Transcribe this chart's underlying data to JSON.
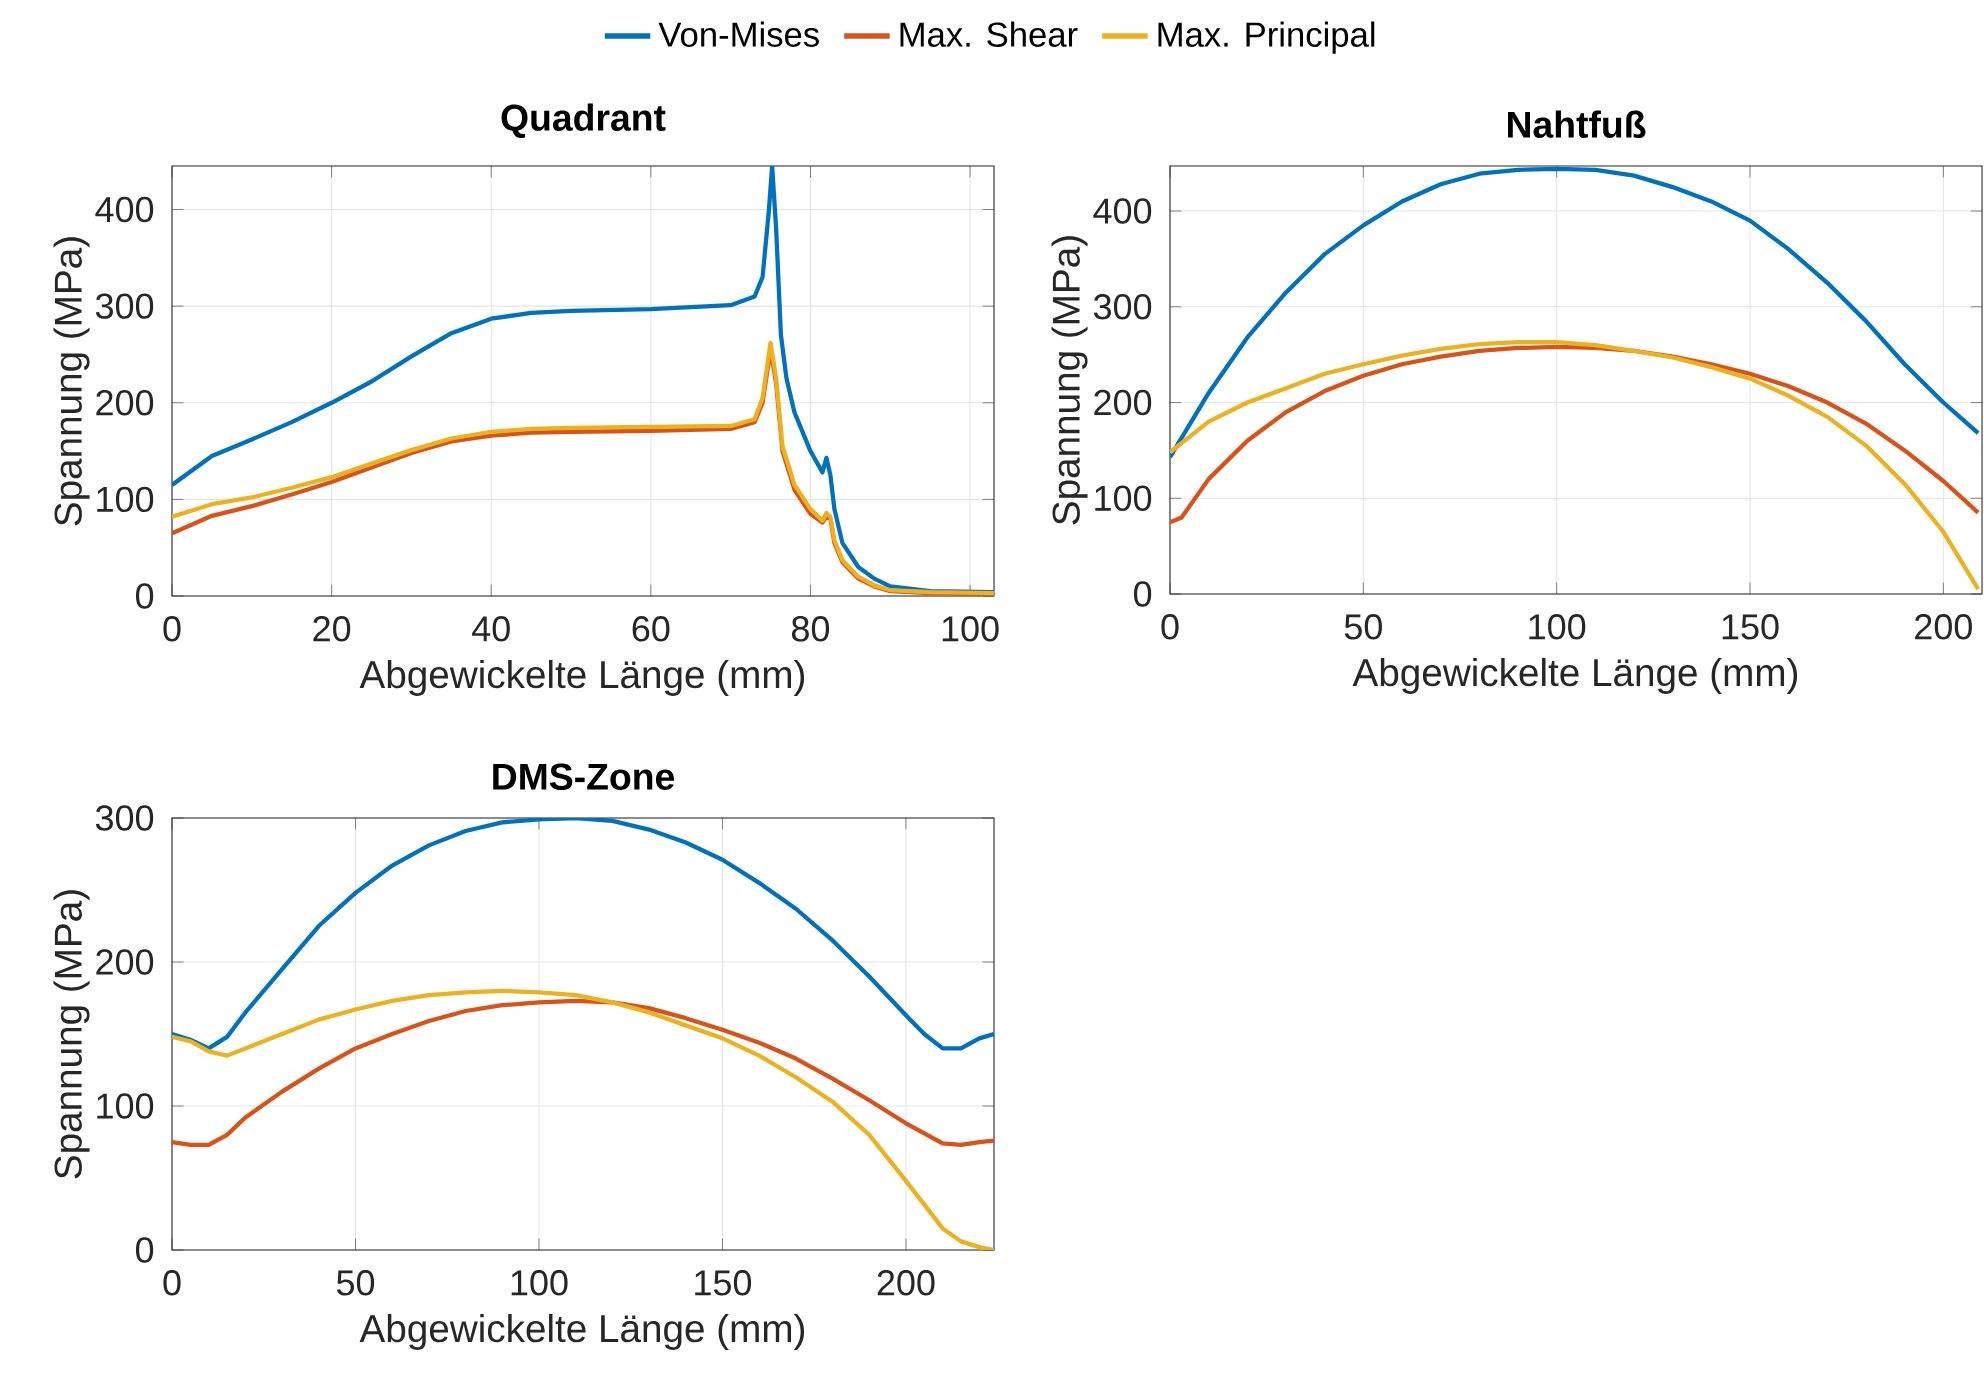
{
  "chart_data": [
    {
      "type": "line",
      "title": "Quadrant",
      "xlabel": "Abgewickelte Länge (mm)",
      "ylabel": "Spannung (MPa)",
      "xlim": [
        0,
        103
      ],
      "ylim": [
        0,
        445
      ],
      "xticks": [
        0,
        20,
        40,
        60,
        80,
        100
      ],
      "yticks": [
        0,
        100,
        200,
        300,
        400
      ],
      "grid": true,
      "legend": "top",
      "line_style": "solid",
      "series": [
        {
          "name": "Von-Mises",
          "color": "#0072bd",
          "x": [
            0,
            5,
            10,
            15,
            20,
            25,
            30,
            35,
            40,
            45,
            50,
            60,
            70,
            73,
            74,
            74.8,
            75.2,
            75.7,
            76.3,
            77,
            78,
            80,
            81.5,
            82,
            82.5,
            83,
            84,
            86,
            88,
            90,
            95,
            103
          ],
          "values": [
            115,
            145,
            162,
            180,
            200,
            222,
            248,
            272,
            287,
            293,
            295,
            297,
            301,
            310,
            330,
            400,
            445,
            380,
            270,
            225,
            190,
            150,
            128,
            143,
            125,
            90,
            55,
            30,
            18,
            10,
            5,
            4
          ]
        },
        {
          "name": "Max. Shear",
          "color": "#d95319",
          "x": [
            0,
            5,
            10,
            15,
            20,
            25,
            30,
            35,
            40,
            45,
            50,
            60,
            70,
            73,
            74,
            75,
            75.7,
            76.5,
            78,
            80,
            81.5,
            82,
            82.5,
            83,
            84,
            86,
            88,
            90,
            95,
            103
          ],
          "values": [
            65,
            83,
            93,
            105,
            118,
            133,
            148,
            160,
            166,
            169,
            170,
            171,
            173,
            180,
            200,
            255,
            220,
            150,
            110,
            85,
            76,
            82,
            80,
            55,
            35,
            18,
            10,
            5,
            3,
            2
          ]
        },
        {
          "name": "Max. Principal",
          "color": "#edb120",
          "x": [
            0,
            5,
            10,
            15,
            20,
            25,
            30,
            35,
            40,
            45,
            50,
            60,
            70,
            73,
            74,
            75,
            75.7,
            76.5,
            78,
            80,
            81.5,
            82,
            82.5,
            83,
            84,
            86,
            88,
            90,
            95,
            103
          ],
          "values": [
            82,
            95,
            102,
            112,
            123,
            137,
            151,
            163,
            170,
            173,
            174,
            175,
            176,
            183,
            205,
            262,
            225,
            155,
            115,
            90,
            78,
            86,
            82,
            58,
            37,
            20,
            11,
            6,
            4,
            3
          ]
        }
      ]
    },
    {
      "type": "line",
      "title": "Nahtfuß",
      "xlabel": "Abgewickelte Länge (mm)",
      "ylabel": "Spannung (MPa)",
      "xlim": [
        0,
        210
      ],
      "ylim": [
        0,
        447
      ],
      "xticks": [
        0,
        50,
        100,
        150,
        200
      ],
      "yticks": [
        0,
        100,
        200,
        300,
        400
      ],
      "grid": true,
      "line_style": "solid",
      "series": [
        {
          "color": "#0072bd",
          "x": [
            0,
            10,
            20,
            30,
            40,
            50,
            60,
            70,
            80,
            90,
            100,
            110,
            120,
            130,
            140,
            150,
            160,
            170,
            180,
            190,
            200,
            209
          ],
          "values": [
            143,
            210,
            268,
            315,
            355,
            385,
            410,
            428,
            439,
            443,
            444,
            443,
            437,
            425,
            410,
            390,
            360,
            325,
            285,
            240,
            200,
            168
          ]
        },
        {
          "color": "#d95319",
          "x": [
            0,
            3,
            10,
            20,
            30,
            40,
            50,
            60,
            70,
            80,
            90,
            100,
            110,
            120,
            130,
            140,
            150,
            160,
            170,
            180,
            190,
            200,
            209
          ],
          "values": [
            75,
            80,
            120,
            160,
            190,
            212,
            228,
            240,
            248,
            254,
            257,
            258,
            257,
            254,
            248,
            240,
            230,
            217,
            200,
            178,
            150,
            118,
            85
          ]
        },
        {
          "color": "#edb120",
          "x": [
            0,
            10,
            20,
            30,
            40,
            50,
            60,
            70,
            80,
            90,
            100,
            110,
            120,
            130,
            140,
            150,
            160,
            170,
            180,
            190,
            200,
            209
          ],
          "values": [
            148,
            180,
            200,
            215,
            230,
            240,
            249,
            256,
            261,
            263,
            263,
            260,
            254,
            247,
            237,
            225,
            207,
            185,
            155,
            115,
            65,
            5
          ]
        }
      ]
    },
    {
      "type": "line",
      "title": "DMS-Zone",
      "xlabel": "Abgewickelte Länge (mm)",
      "ylabel": "Spannung (MPa)",
      "xlim": [
        0,
        224
      ],
      "ylim": [
        0,
        300
      ],
      "xticks": [
        0,
        50,
        100,
        150,
        200
      ],
      "yticks": [
        0,
        100,
        200,
        300
      ],
      "grid": true,
      "line_style": "solid",
      "series": [
        {
          "color": "#0072bd",
          "x": [
            0,
            5,
            10,
            15,
            20,
            30,
            40,
            50,
            60,
            70,
            80,
            90,
            100,
            110,
            120,
            130,
            140,
            150,
            160,
            170,
            180,
            190,
            200,
            205,
            210,
            215,
            220,
            224
          ],
          "values": [
            150,
            146,
            140,
            148,
            165,
            195,
            225,
            248,
            267,
            281,
            291,
            297,
            299,
            300,
            298,
            292,
            283,
            271,
            255,
            237,
            215,
            190,
            163,
            150,
            140,
            140,
            147,
            150
          ]
        },
        {
          "color": "#d95319",
          "x": [
            0,
            5,
            10,
            15,
            20,
            30,
            40,
            50,
            60,
            70,
            80,
            90,
            100,
            110,
            120,
            130,
            140,
            150,
            160,
            170,
            180,
            190,
            200,
            210,
            215,
            220,
            224
          ],
          "values": [
            75,
            73,
            73,
            80,
            92,
            110,
            126,
            140,
            150,
            159,
            166,
            170,
            172,
            173,
            172,
            168,
            161,
            153,
            144,
            133,
            119,
            104,
            88,
            74,
            73,
            75,
            76
          ]
        },
        {
          "color": "#edb120",
          "x": [
            0,
            5,
            10,
            15,
            20,
            30,
            40,
            50,
            60,
            70,
            80,
            90,
            100,
            110,
            120,
            130,
            140,
            150,
            160,
            170,
            180,
            190,
            200,
            210,
            215,
            220,
            224
          ],
          "values": [
            148,
            145,
            138,
            135,
            140,
            150,
            160,
            167,
            173,
            177,
            179,
            180,
            179,
            177,
            172,
            165,
            156,
            147,
            135,
            120,
            103,
            80,
            48,
            15,
            6,
            2,
            0
          ]
        }
      ]
    }
  ]
}
